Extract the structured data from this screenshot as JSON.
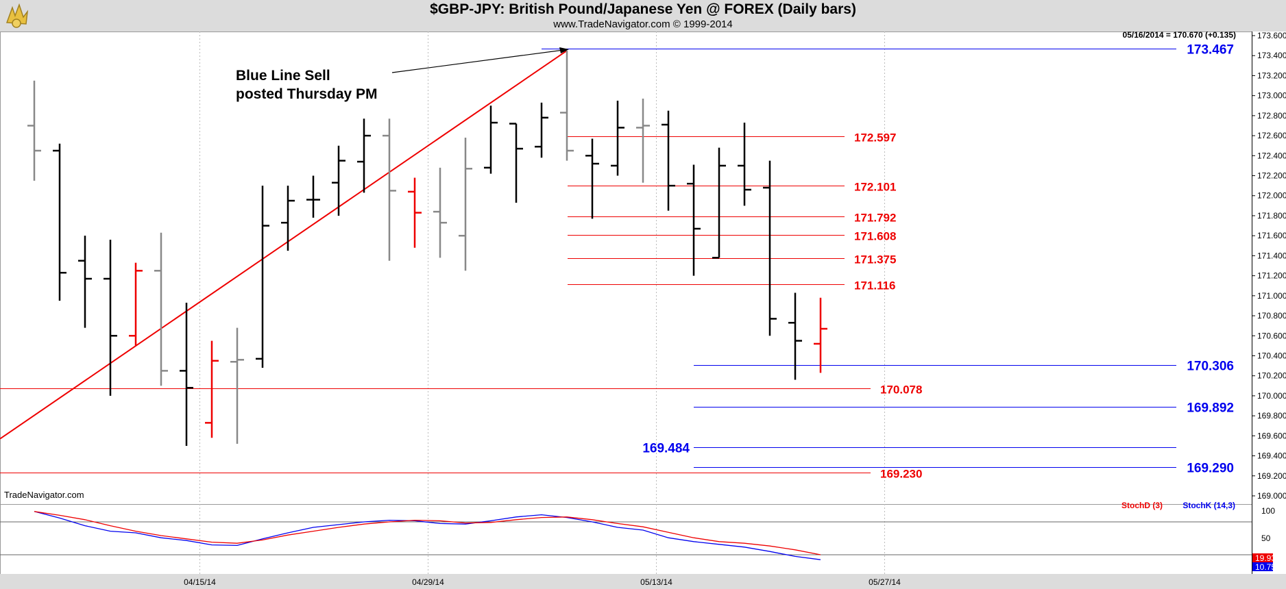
{
  "header": {
    "title": "$GBP-JPY:  British Pound/Japanese Yen @ FOREX  (Daily bars)",
    "subtitle": "www.TradeNavigator.com © 1999-2014"
  },
  "last_quote": "05/16/2014 = 170.670 (+0.135)",
  "watermark": "TradeNavigator.com",
  "annotation": {
    "line1": "Blue Line Sell",
    "line2": "posted Thursday PM"
  },
  "price_axis_ticks": [
    "173.600",
    "173.400",
    "173.200",
    "173.000",
    "172.800",
    "172.600",
    "172.400",
    "172.200",
    "172.000",
    "171.800",
    "171.600",
    "171.400",
    "171.200",
    "171.000",
    "170.800",
    "170.600",
    "170.400",
    "170.200",
    "170.000",
    "169.800",
    "169.600",
    "169.400",
    "169.200",
    "169.000"
  ],
  "stoch_axis_ticks": [
    "100",
    "50"
  ],
  "stoch_legend": {
    "d": "StochD (3)",
    "k": "StochK (14,3)"
  },
  "stoch_last": {
    "d": "19.93",
    "k": "10.75"
  },
  "date_labels": [
    "04/15/14",
    "04/29/14",
    "05/13/14",
    "05/27/14"
  ],
  "colors": {
    "up_red": "#ee0000",
    "blue": "#0000ee",
    "gray": "#888888",
    "black": "#000000",
    "header_bg": "#dcdcdc"
  },
  "chart_data": {
    "type": "ohlc",
    "symbol": "$GBP-JPY",
    "y_range": [
      169.0,
      173.6
    ],
    "stoch_range": [
      0,
      100
    ],
    "bars": [
      {
        "open": 172.7,
        "high": 173.15,
        "low": 172.15,
        "close": 172.45,
        "color": "gray"
      },
      {
        "open": 172.45,
        "high": 172.52,
        "low": 170.95,
        "close": 171.23,
        "color": "black"
      },
      {
        "open": 171.35,
        "high": 171.6,
        "low": 170.68,
        "close": 171.17,
        "color": "black"
      },
      {
        "open": 171.17,
        "high": 171.56,
        "low": 170.0,
        "close": 170.6,
        "color": "black"
      },
      {
        "open": 170.6,
        "high": 171.33,
        "low": 170.5,
        "close": 171.25,
        "color": "red"
      },
      {
        "open": 171.25,
        "high": 171.63,
        "low": 170.1,
        "close": 170.25,
        "color": "gray"
      },
      {
        "open": 170.25,
        "high": 170.93,
        "low": 169.5,
        "close": 170.08,
        "color": "black"
      },
      {
        "open": 169.73,
        "high": 170.55,
        "low": 169.58,
        "close": 170.35,
        "color": "red"
      },
      {
        "open": 170.34,
        "high": 170.68,
        "low": 169.52,
        "close": 170.36,
        "color": "gray"
      },
      {
        "open": 170.37,
        "high": 172.1,
        "low": 170.28,
        "close": 171.7,
        "color": "black"
      },
      {
        "open": 171.73,
        "high": 172.1,
        "low": 171.45,
        "close": 171.95,
        "color": "black"
      },
      {
        "open": 171.96,
        "high": 172.2,
        "low": 171.78,
        "close": 171.96,
        "color": "black"
      },
      {
        "open": 172.13,
        "high": 172.5,
        "low": 171.8,
        "close": 172.35,
        "color": "black"
      },
      {
        "open": 172.34,
        "high": 172.77,
        "low": 172.03,
        "close": 172.6,
        "color": "black"
      },
      {
        "open": 172.6,
        "high": 172.77,
        "low": 171.35,
        "close": 172.05,
        "color": "gray"
      },
      {
        "open": 172.04,
        "high": 172.18,
        "low": 171.48,
        "close": 171.83,
        "color": "red"
      },
      {
        "open": 171.84,
        "high": 172.28,
        "low": 171.38,
        "close": 171.73,
        "color": "gray"
      },
      {
        "open": 171.6,
        "high": 172.58,
        "low": 171.25,
        "close": 172.27,
        "color": "gray"
      },
      {
        "open": 172.28,
        "high": 172.9,
        "low": 172.22,
        "close": 172.73,
        "color": "black"
      },
      {
        "open": 172.72,
        "high": 172.72,
        "low": 171.93,
        "close": 172.47,
        "color": "black"
      },
      {
        "open": 172.49,
        "high": 172.93,
        "low": 172.38,
        "close": 172.78,
        "color": "black"
      },
      {
        "open": 172.83,
        "high": 173.45,
        "low": 172.35,
        "close": 172.45,
        "color": "gray"
      },
      {
        "open": 172.4,
        "high": 172.57,
        "low": 171.77,
        "close": 172.32,
        "color": "black"
      },
      {
        "open": 172.3,
        "high": 172.95,
        "low": 172.2,
        "close": 172.68,
        "color": "black"
      },
      {
        "open": 172.68,
        "high": 172.97,
        "low": 172.13,
        "close": 172.7,
        "color": "gray"
      },
      {
        "open": 172.71,
        "high": 172.85,
        "low": 171.85,
        "close": 172.1,
        "color": "black"
      },
      {
        "open": 172.12,
        "high": 172.31,
        "low": 171.2,
        "close": 171.67,
        "color": "black"
      },
      {
        "open": 171.38,
        "high": 172.48,
        "low": 171.38,
        "close": 172.3,
        "color": "black"
      },
      {
        "open": 172.3,
        "high": 172.73,
        "low": 171.9,
        "close": 172.06,
        "color": "black"
      },
      {
        "open": 172.08,
        "high": 172.35,
        "low": 170.6,
        "close": 170.77,
        "color": "black"
      },
      {
        "open": 170.73,
        "high": 171.03,
        "low": 170.16,
        "close": 170.55,
        "color": "black"
      },
      {
        "open": 170.52,
        "high": 170.98,
        "low": 170.23,
        "close": 170.67,
        "color": "red"
      }
    ],
    "red_levels": [
      {
        "value": 172.597,
        "label": "172.597"
      },
      {
        "value": 172.101,
        "label": "172.101"
      },
      {
        "value": 171.792,
        "label": "171.792"
      },
      {
        "value": 171.608,
        "label": "171.608"
      },
      {
        "value": 171.375,
        "label": "171.375"
      },
      {
        "value": 171.116,
        "label": "171.116"
      },
      {
        "value": 170.078,
        "label": "170.078"
      },
      {
        "value": 169.23,
        "label": "169.230"
      }
    ],
    "blue_levels": [
      {
        "value": 173.467,
        "label": "173.467",
        "side": "right"
      },
      {
        "value": 170.306,
        "label": "170.306",
        "side": "right"
      },
      {
        "value": 169.892,
        "label": "169.892",
        "side": "right"
      },
      {
        "value": 169.484,
        "label": "169.484",
        "side": "left"
      },
      {
        "value": 169.29,
        "label": "169.290",
        "side": "right"
      }
    ],
    "trendline": {
      "from_price": 169.57,
      "to_bar": 21,
      "to_price": 173.45
    },
    "stoch_d": [
      99,
      92,
      84,
      73,
      63,
      55,
      49,
      43,
      41,
      47,
      56,
      63,
      70,
      76,
      80,
      83,
      82,
      78,
      79,
      84,
      88,
      89,
      84,
      77,
      71,
      61,
      51,
      44,
      41,
      36,
      29,
      20
    ],
    "stoch_k": [
      99,
      87,
      73,
      63,
      60,
      51,
      46,
      38,
      37,
      49,
      60,
      70,
      75,
      80,
      83,
      82,
      77,
      76,
      82,
      89,
      93,
      88,
      80,
      70,
      65,
      51,
      44,
      39,
      34,
      26,
      17,
      11
    ],
    "stoch_reference_lines": [
      80,
      20
    ]
  }
}
